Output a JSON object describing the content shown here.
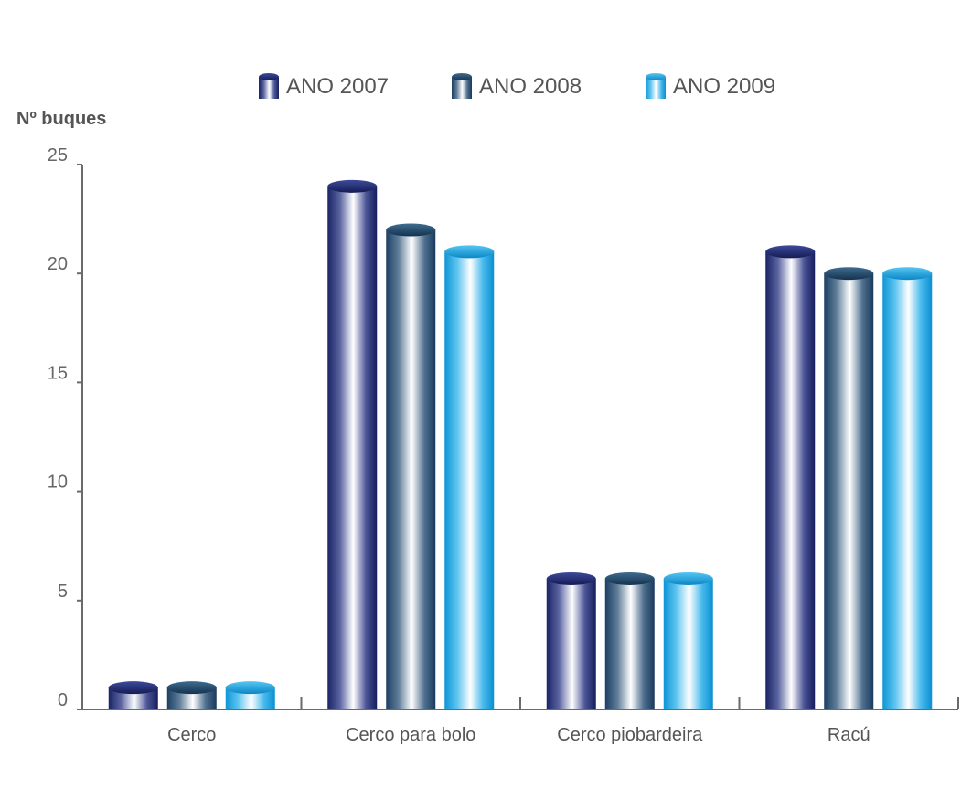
{
  "chart_data": {
    "type": "bar",
    "style": "cylinder",
    "ylabel": "Nº buques",
    "xlabel": "",
    "ylim": [
      0,
      25
    ],
    "yticks": [
      "0",
      "5",
      "10",
      "15",
      "20",
      "25"
    ],
    "grid": false,
    "legend_position": "top",
    "categories": [
      "Cerco",
      "Cerco para bolo",
      "Cerco piobardeira",
      "Racú"
    ],
    "series": [
      {
        "name": "ANO 2007",
        "values": [
          1,
          24,
          6,
          21
        ],
        "color": "#1f2a6b"
      },
      {
        "name": "ANO 2008",
        "values": [
          1,
          22,
          6,
          20
        ],
        "color": "#1e4f70"
      },
      {
        "name": "ANO 2009",
        "values": [
          1,
          21,
          6,
          20
        ],
        "color": "#1aa6dd"
      }
    ]
  }
}
